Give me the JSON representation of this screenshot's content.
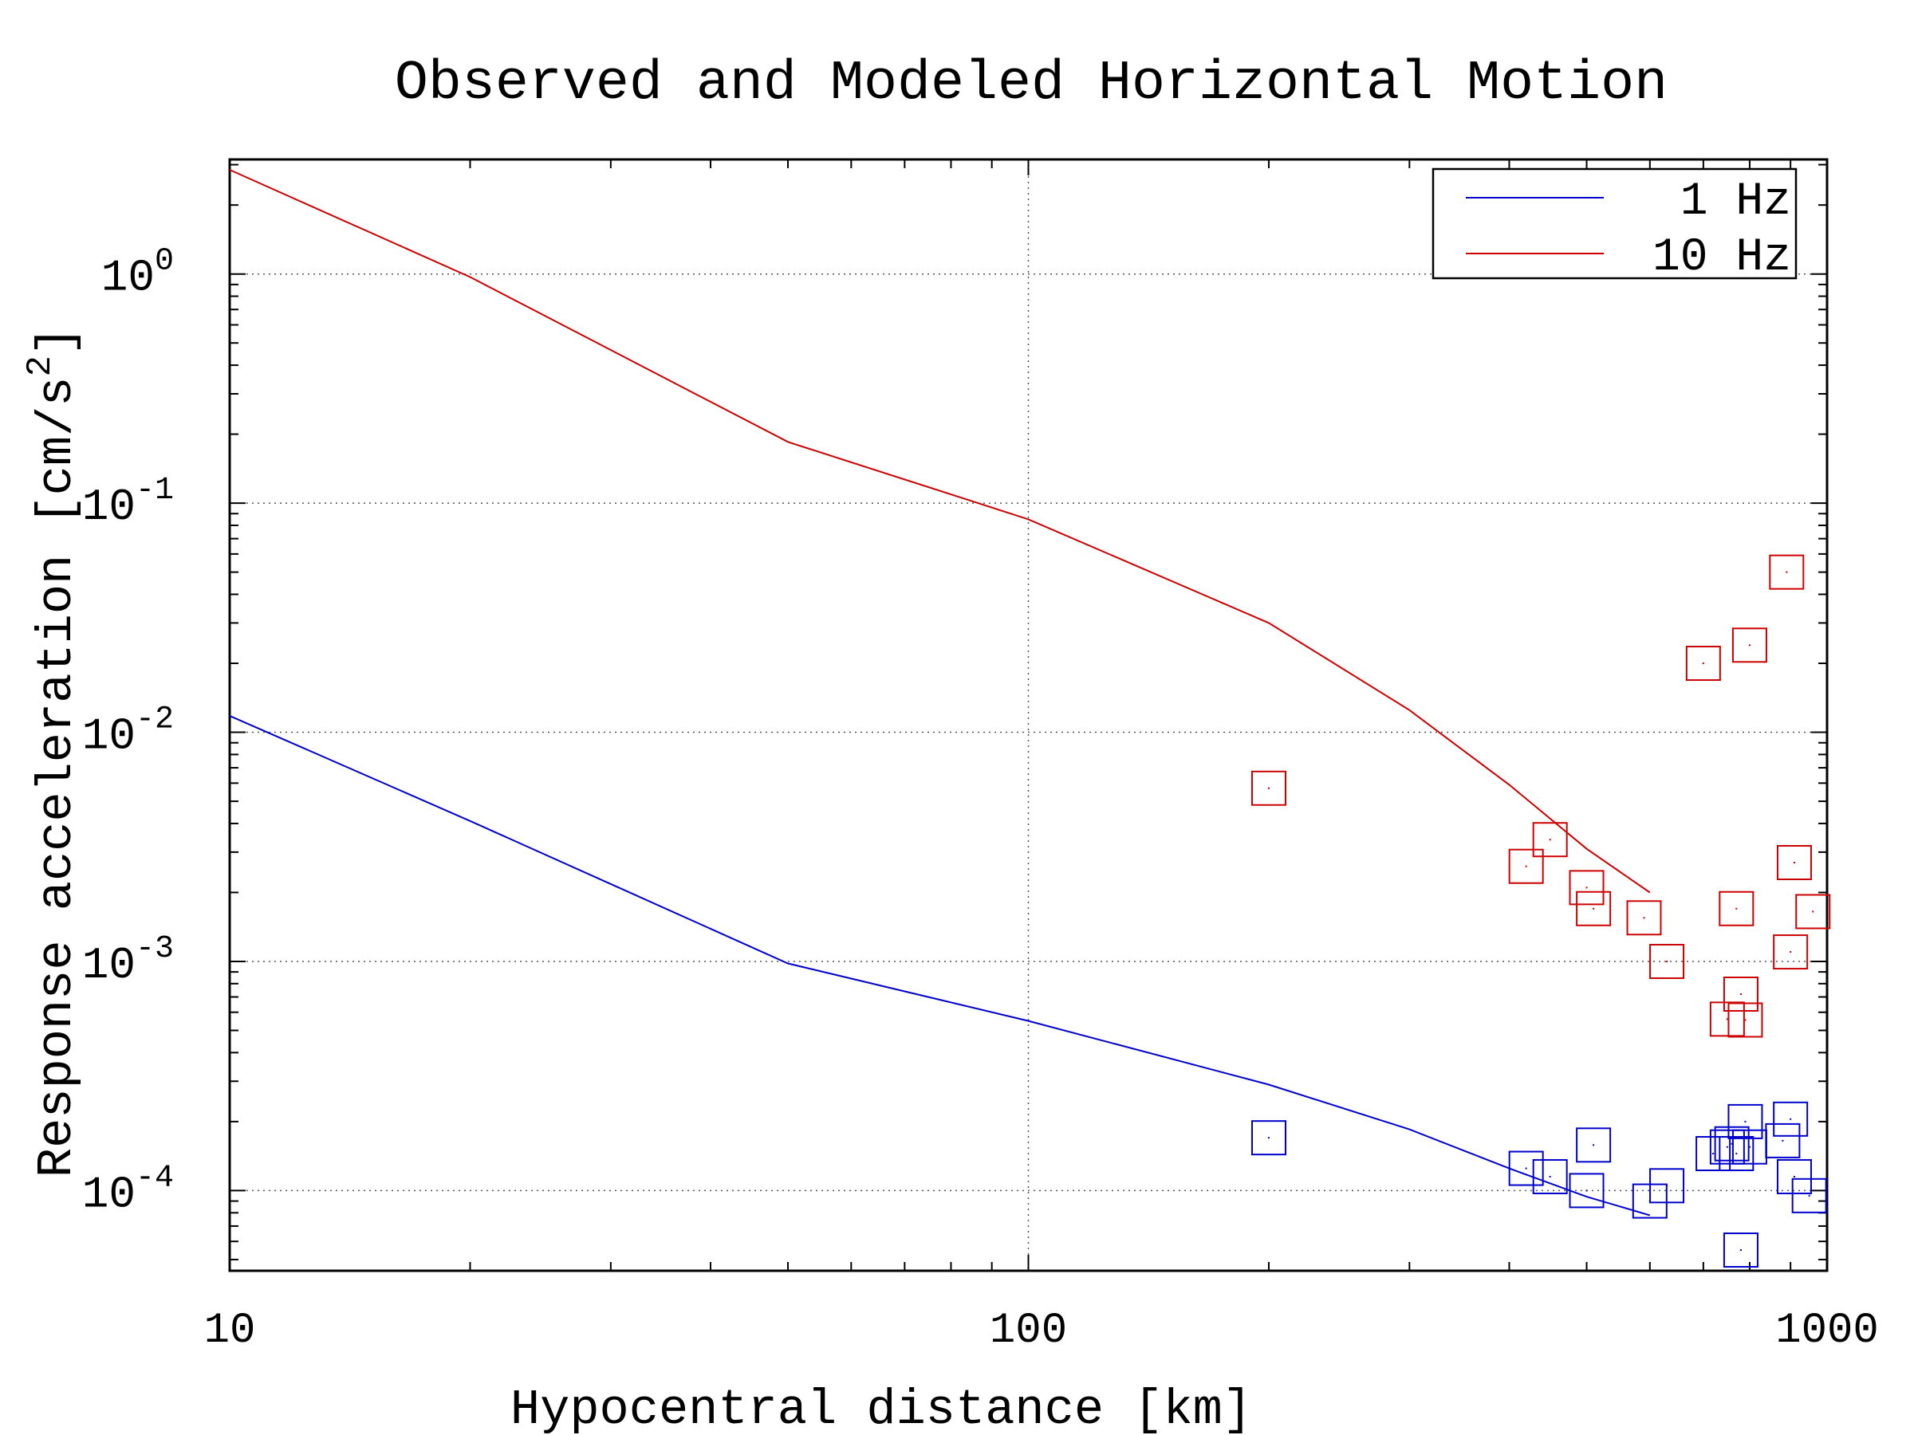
{
  "chart_data": {
    "type": "scatter",
    "title": "Observed and Modeled Horizontal Motion",
    "xlabel": "Hypocentral distance [km]",
    "ylabel": "Response acceleration [cm/s",
    "ylabel_sup": "2",
    "ylabel_end": "]",
    "xscale": "log",
    "yscale": "log",
    "xlim": [
      10,
      1000
    ],
    "ylim": [
      4.467e-05,
      3.162
    ],
    "grid": true,
    "legend_position": "top-right",
    "x_ticks": [
      {
        "value": 10,
        "label": "10"
      },
      {
        "value": 100,
        "label": "100"
      },
      {
        "value": 1000,
        "label": "1000"
      }
    ],
    "y_ticks": [
      {
        "value": 1,
        "base": "10",
        "exp": "0"
      },
      {
        "value": 0.1,
        "base": "10",
        "exp": "-1"
      },
      {
        "value": 0.01,
        "base": "10",
        "exp": "-2"
      },
      {
        "value": 0.001,
        "base": "10",
        "exp": "-3"
      },
      {
        "value": 0.0001,
        "base": "10",
        "exp": "-4"
      }
    ],
    "series": [
      {
        "name": "1 Hz",
        "color": "#0000cc",
        "line": [
          [
            10,
            0.0118
          ],
          [
            20,
            0.0041
          ],
          [
            50,
            0.00098
          ],
          [
            100,
            0.00055
          ],
          [
            200,
            0.00029
          ],
          [
            300,
            0.000185
          ],
          [
            400,
            0.000125
          ],
          [
            500,
            9.4e-05
          ],
          [
            600,
            7.8e-05
          ]
        ],
        "points": [
          [
            200,
            0.00017
          ],
          [
            420,
            0.000125
          ],
          [
            450,
            0.000115
          ],
          [
            500,
            0.0001
          ],
          [
            510,
            0.000158
          ],
          [
            600,
            9e-05
          ],
          [
            630,
            0.000105
          ],
          [
            720,
            0.000145
          ],
          [
            750,
            0.000155
          ],
          [
            760,
            0.00016
          ],
          [
            770,
            0.000145
          ],
          [
            780,
            5.5e-05
          ],
          [
            790,
            0.0002
          ],
          [
            800,
            0.000155
          ],
          [
            880,
            0.000165
          ],
          [
            900,
            0.000205
          ],
          [
            910,
            0.000115
          ],
          [
            950,
            9.5e-05
          ]
        ]
      },
      {
        "name": "10 Hz",
        "color": "#cc0000",
        "line": [
          [
            10,
            2.85
          ],
          [
            20,
            0.97
          ],
          [
            50,
            0.185
          ],
          [
            100,
            0.085
          ],
          [
            200,
            0.03
          ],
          [
            300,
            0.0125
          ],
          [
            400,
            0.0059
          ],
          [
            500,
            0.0031
          ],
          [
            600,
            0.002
          ]
        ],
        "points": [
          [
            200,
            0.0057
          ],
          [
            420,
            0.0026
          ],
          [
            450,
            0.0034
          ],
          [
            500,
            0.0021
          ],
          [
            510,
            0.0017
          ],
          [
            590,
            0.00155
          ],
          [
            630,
            0.001
          ],
          [
            700,
            0.02
          ],
          [
            750,
            0.00056
          ],
          [
            770,
            0.0017
          ],
          [
            780,
            0.00072
          ],
          [
            790,
            0.000555
          ],
          [
            800,
            0.024
          ],
          [
            890,
            0.05
          ],
          [
            900,
            0.0011
          ],
          [
            910,
            0.0027
          ],
          [
            960,
            0.00165
          ]
        ]
      }
    ]
  }
}
